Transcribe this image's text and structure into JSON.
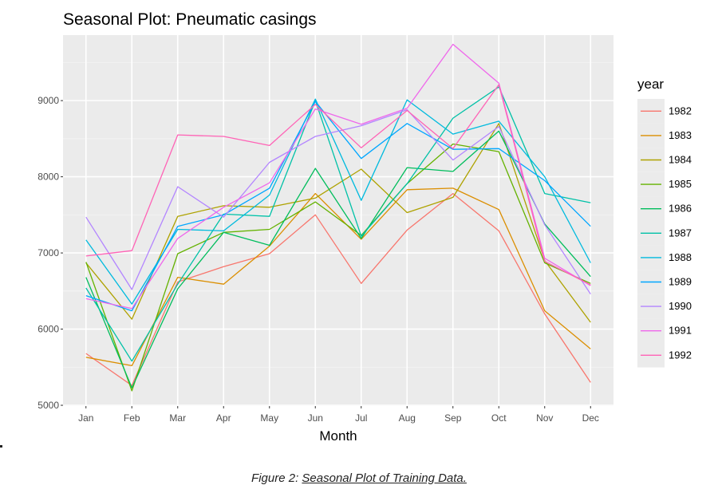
{
  "chart_data": {
    "type": "line",
    "title": "Seasonal Plot: Pneumatic casings",
    "xlabel": "Month",
    "ylabel": "",
    "categories": [
      "Jan",
      "Feb",
      "Mar",
      "Apr",
      "May",
      "Jun",
      "Jul",
      "Aug",
      "Sep",
      "Oct",
      "Nov",
      "Dec"
    ],
    "ylim": [
      4990,
      9860
    ],
    "yticks": [
      5000,
      6000,
      7000,
      8000,
      9000
    ],
    "grid": true,
    "panel_background": "#ebebeb",
    "legend_title": "year",
    "legend_position": "right",
    "series": [
      {
        "name": "1982",
        "color": "#F8766D",
        "values": [
          5680,
          5260,
          6620,
          6820,
          6990,
          7500,
          6600,
          7300,
          7780,
          7290,
          6200,
          5300
        ]
      },
      {
        "name": "1983",
        "color": "#DB8E00",
        "values": [
          5630,
          5520,
          6680,
          6590,
          7090,
          7780,
          7180,
          7830,
          7850,
          7570,
          6240,
          5740
        ]
      },
      {
        "name": "1984",
        "color": "#AEA200",
        "values": [
          6870,
          6130,
          7480,
          7620,
          7600,
          7720,
          8100,
          7530,
          7730,
          8700,
          6900,
          6090
        ]
      },
      {
        "name": "1985",
        "color": "#64B200",
        "values": [
          6880,
          5190,
          6990,
          7270,
          7310,
          7670,
          7230,
          7910,
          8430,
          8330,
          6870,
          6600
        ]
      },
      {
        "name": "1986",
        "color": "#00BD5C",
        "values": [
          6680,
          5230,
          6530,
          7270,
          7100,
          8110,
          7190,
          8120,
          8070,
          8600,
          7380,
          6690
        ]
      },
      {
        "name": "1987",
        "color": "#00C1A7",
        "values": [
          6540,
          5580,
          6590,
          7510,
          7480,
          9000,
          7220,
          7910,
          8770,
          9180,
          7780,
          7660
        ]
      },
      {
        "name": "1988",
        "color": "#00BADE",
        "values": [
          7170,
          6330,
          7310,
          7290,
          7760,
          9020,
          7690,
          9010,
          8560,
          8730,
          8000,
          6870
        ]
      },
      {
        "name": "1989",
        "color": "#00A6FF",
        "values": [
          6440,
          6240,
          7350,
          7500,
          7850,
          8990,
          8240,
          8700,
          8360,
          8370,
          7950,
          7350
        ]
      },
      {
        "name": "1990",
        "color": "#B385FF",
        "values": [
          7470,
          6520,
          7870,
          7470,
          8190,
          8530,
          8670,
          8880,
          8220,
          8660,
          7370,
          6460
        ]
      },
      {
        "name": "1991",
        "color": "#EF67EB",
        "values": [
          6400,
          6270,
          7190,
          7600,
          7920,
          8890,
          8690,
          8900,
          9740,
          9230,
          6930,
          6570
        ]
      },
      {
        "name": "1992",
        "color": "#FF63B6",
        "values": [
          6960,
          7030,
          8550,
          8530,
          8410,
          8950,
          8380,
          8870,
          8370,
          9210,
          6890,
          6580
        ]
      }
    ]
  },
  "caption": {
    "prefix": "Figure 2: ",
    "text": "Seasonal Plot of Training Data."
  }
}
